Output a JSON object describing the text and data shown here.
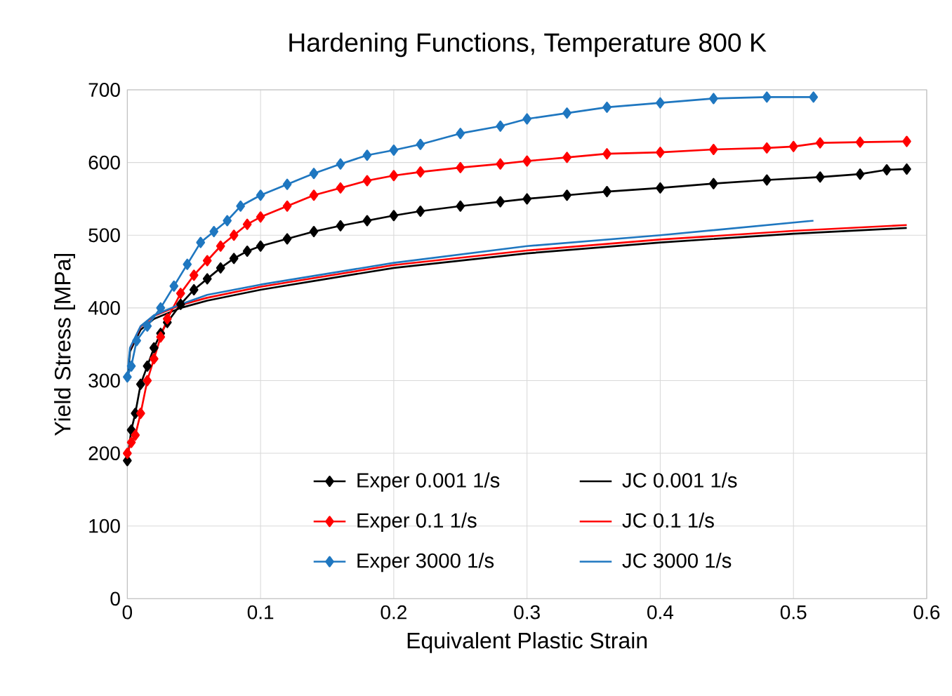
{
  "chart_data": {
    "type": "line",
    "title": "Hardening Functions, Temperature 800 K",
    "xlabel": "Equivalent Plastic Strain",
    "ylabel": "Yield Stress [MPa]",
    "xlim": [
      0,
      0.6
    ],
    "ylim": [
      0,
      700
    ],
    "xticks": [
      0,
      0.1,
      0.2,
      0.3,
      0.4,
      0.5,
      0.6
    ],
    "yticks": [
      0,
      100,
      200,
      300,
      400,
      500,
      600,
      700
    ],
    "grid": true,
    "legend": "bottom",
    "line_style": "solid",
    "series": [
      {
        "name": "Exper 0.001 1/s",
        "color": "#000000",
        "marker": "diamond",
        "x": [
          0,
          0.003,
          0.006,
          0.01,
          0.015,
          0.02,
          0.025,
          0.03,
          0.04,
          0.05,
          0.06,
          0.07,
          0.08,
          0.09,
          0.1,
          0.12,
          0.14,
          0.16,
          0.18,
          0.2,
          0.22,
          0.25,
          0.28,
          0.3,
          0.33,
          0.36,
          0.4,
          0.44,
          0.48,
          0.52,
          0.55,
          0.57,
          0.585
        ],
        "values": [
          190,
          232,
          255,
          295,
          320,
          345,
          365,
          380,
          405,
          425,
          440,
          455,
          468,
          478,
          485,
          495,
          505,
          513,
          520,
          527,
          533,
          540,
          546,
          550,
          555,
          560,
          565,
          571,
          576,
          580,
          584,
          590,
          591
        ]
      },
      {
        "name": "Exper 0.1 1/s",
        "color": "#ff0000",
        "marker": "diamond",
        "x": [
          0,
          0.003,
          0.006,
          0.01,
          0.015,
          0.02,
          0.025,
          0.03,
          0.04,
          0.05,
          0.06,
          0.07,
          0.08,
          0.09,
          0.1,
          0.12,
          0.14,
          0.16,
          0.18,
          0.2,
          0.22,
          0.25,
          0.28,
          0.3,
          0.33,
          0.36,
          0.4,
          0.44,
          0.48,
          0.5,
          0.52,
          0.55,
          0.585
        ],
        "values": [
          200,
          215,
          225,
          255,
          300,
          330,
          360,
          385,
          420,
          445,
          465,
          485,
          500,
          515,
          525,
          540,
          555,
          565,
          575,
          582,
          587,
          593,
          598,
          602,
          607,
          612,
          614,
          618,
          620,
          622,
          627,
          628,
          629
        ]
      },
      {
        "name": "Exper 3000 1/s",
        "color": "#1f77c0",
        "marker": "diamond",
        "x": [
          0,
          0.003,
          0.007,
          0.015,
          0.025,
          0.035,
          0.045,
          0.055,
          0.065,
          0.075,
          0.085,
          0.1,
          0.12,
          0.14,
          0.16,
          0.18,
          0.2,
          0.22,
          0.25,
          0.28,
          0.3,
          0.33,
          0.36,
          0.4,
          0.44,
          0.48,
          0.515
        ],
        "values": [
          305,
          320,
          355,
          375,
          400,
          430,
          460,
          490,
          505,
          520,
          540,
          555,
          570,
          585,
          598,
          610,
          617,
          625,
          640,
          650,
          660,
          668,
          676,
          682,
          688,
          690,
          690
        ]
      },
      {
        "name": "JC 0.001 1/s",
        "color": "#000000",
        "marker": "none",
        "x": [
          0,
          0.002,
          0.01,
          0.02,
          0.04,
          0.06,
          0.1,
          0.15,
          0.2,
          0.3,
          0.4,
          0.5,
          0.585
        ],
        "values": [
          300,
          340,
          370,
          385,
          400,
          410,
          425,
          440,
          455,
          475,
          490,
          502,
          510
        ]
      },
      {
        "name": "JC 0.1 1/s",
        "color": "#ff0000",
        "marker": "none",
        "x": [
          0.002,
          0.01,
          0.02,
          0.04,
          0.06,
          0.1,
          0.15,
          0.2,
          0.3,
          0.4,
          0.5,
          0.585
        ],
        "values": [
          344,
          374,
          389,
          404,
          414,
          429,
          444,
          459,
          479,
          494,
          506,
          514
        ]
      },
      {
        "name": "JC 3000 1/s",
        "color": "#1f77c0",
        "marker": "none",
        "x": [
          0,
          0.002,
          0.01,
          0.02,
          0.04,
          0.06,
          0.1,
          0.15,
          0.2,
          0.3,
          0.4,
          0.515
        ],
        "values": [
          310,
          345,
          375,
          390,
          405,
          418,
          432,
          447,
          462,
          485,
          500,
          520
        ]
      }
    ]
  }
}
